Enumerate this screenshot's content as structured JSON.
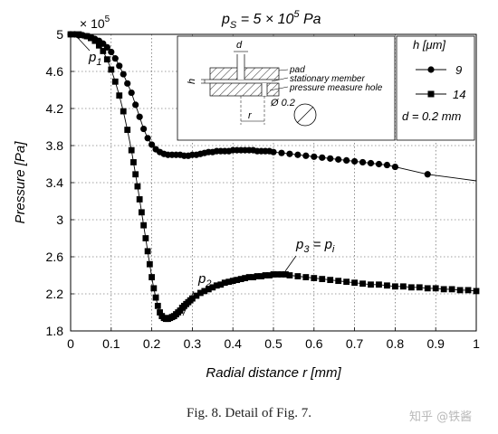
{
  "chart_data": {
    "type": "scatter",
    "title": "p",
    "title_sub": "S",
    "title_tail": " = 5 × 10",
    "title_exp": "5",
    "title_unit": " Pa",
    "xlabel": "Radial distance r [mm]",
    "ylabel": "Pressure [Pa]",
    "xlim": [
      0,
      1
    ],
    "ylim": [
      1.8,
      5.0
    ],
    "x_ticks": [
      "0",
      "0.1",
      "0.2",
      "0.3",
      "0.4",
      "0.5",
      "0.6",
      "0.7",
      "0.8",
      "0.9",
      "1"
    ],
    "y_ticks": [
      "1.8",
      "2.2",
      "2.6",
      "3",
      "3.4",
      "3.8",
      "4.2",
      "4.6",
      "5"
    ],
    "y_multiplier": "× 10",
    "y_multiplier_exp": "5",
    "grid": true,
    "legend": {
      "title": "h [μm]",
      "entries": [
        "9",
        "14"
      ],
      "note": "d = 0.2 mm",
      "position": "top-right"
    },
    "series": [
      {
        "name": "9",
        "marker": "circle",
        "x": [
          0,
          0.01,
          0.02,
          0.03,
          0.04,
          0.05,
          0.06,
          0.07,
          0.08,
          0.09,
          0.1,
          0.11,
          0.12,
          0.13,
          0.14,
          0.15,
          0.16,
          0.17,
          0.18,
          0.19,
          0.2,
          0.21,
          0.22,
          0.23,
          0.24,
          0.25,
          0.26,
          0.27,
          0.28,
          0.29,
          0.3,
          0.31,
          0.32,
          0.33,
          0.34,
          0.35,
          0.36,
          0.37,
          0.38,
          0.39,
          0.4,
          0.41,
          0.42,
          0.43,
          0.44,
          0.45,
          0.46,
          0.47,
          0.48,
          0.49,
          0.5,
          0.52,
          0.54,
          0.56,
          0.58,
          0.6,
          0.62,
          0.64,
          0.66,
          0.68,
          0.7,
          0.72,
          0.74,
          0.76,
          0.78,
          0.8,
          0.88
        ],
        "y": [
          5.0,
          5.0,
          4.99,
          4.99,
          4.98,
          4.97,
          4.95,
          4.93,
          4.9,
          4.86,
          4.81,
          4.74,
          4.66,
          4.57,
          4.47,
          4.37,
          4.24,
          4.11,
          3.98,
          3.88,
          3.81,
          3.76,
          3.73,
          3.71,
          3.7,
          3.7,
          3.7,
          3.7,
          3.69,
          3.69,
          3.7,
          3.7,
          3.71,
          3.72,
          3.73,
          3.73,
          3.74,
          3.74,
          3.74,
          3.74,
          3.75,
          3.75,
          3.75,
          3.75,
          3.75,
          3.75,
          3.74,
          3.74,
          3.74,
          3.74,
          3.73,
          3.72,
          3.71,
          3.7,
          3.69,
          3.68,
          3.67,
          3.66,
          3.65,
          3.64,
          3.63,
          3.62,
          3.61,
          3.6,
          3.59,
          3.57,
          3.49
        ]
      },
      {
        "name": "14",
        "marker": "square",
        "x": [
          0,
          0.02,
          0.04,
          0.05,
          0.06,
          0.07,
          0.08,
          0.09,
          0.1,
          0.11,
          0.12,
          0.13,
          0.14,
          0.15,
          0.155,
          0.16,
          0.165,
          0.17,
          0.175,
          0.18,
          0.185,
          0.19,
          0.195,
          0.2,
          0.205,
          0.21,
          0.215,
          0.22,
          0.225,
          0.23,
          0.235,
          0.24,
          0.245,
          0.25,
          0.255,
          0.26,
          0.265,
          0.27,
          0.275,
          0.28,
          0.285,
          0.29,
          0.295,
          0.3,
          0.31,
          0.32,
          0.33,
          0.34,
          0.35,
          0.36,
          0.37,
          0.38,
          0.39,
          0.4,
          0.41,
          0.42,
          0.43,
          0.44,
          0.45,
          0.46,
          0.47,
          0.48,
          0.49,
          0.5,
          0.51,
          0.52,
          0.53,
          0.54,
          0.56,
          0.58,
          0.6,
          0.62,
          0.64,
          0.66,
          0.68,
          0.7,
          0.72,
          0.74,
          0.76,
          0.78,
          0.8,
          0.82,
          0.84,
          0.86,
          0.88,
          0.9,
          0.92,
          0.94,
          0.96,
          0.98,
          1.0
        ],
        "y": [
          5.0,
          5.0,
          4.98,
          4.96,
          4.93,
          4.88,
          4.82,
          4.73,
          4.62,
          4.49,
          4.34,
          4.17,
          3.97,
          3.75,
          3.62,
          3.49,
          3.36,
          3.22,
          3.08,
          2.94,
          2.8,
          2.66,
          2.52,
          2.38,
          2.26,
          2.16,
          2.07,
          2.0,
          1.96,
          1.94,
          1.93,
          1.93,
          1.94,
          1.95,
          1.96,
          1.98,
          2.0,
          2.02,
          2.05,
          2.07,
          2.09,
          2.11,
          2.13,
          2.15,
          2.18,
          2.21,
          2.23,
          2.25,
          2.27,
          2.29,
          2.3,
          2.32,
          2.33,
          2.34,
          2.35,
          2.36,
          2.37,
          2.38,
          2.38,
          2.39,
          2.39,
          2.4,
          2.4,
          2.41,
          2.41,
          2.41,
          2.41,
          2.4,
          2.39,
          2.38,
          2.37,
          2.36,
          2.35,
          2.34,
          2.33,
          2.32,
          2.31,
          2.3,
          2.3,
          2.29,
          2.28,
          2.28,
          2.27,
          2.27,
          2.26,
          2.26,
          2.25,
          2.25,
          2.24,
          2.24,
          2.23
        ]
      }
    ],
    "annotations": [
      {
        "base": "p",
        "sub": "1",
        "tail": "",
        "tail_sub": ""
      },
      {
        "base": "p",
        "sub": "2",
        "tail": "",
        "tail_sub": ""
      },
      {
        "base": "p",
        "sub": "3",
        "tail": " = p",
        "tail_sub": "i"
      }
    ],
    "inset_labels": {
      "d": "d",
      "h": "h",
      "pad": "pad",
      "stationary_member": "stationary member",
      "pressure_hole": "pressure measure hole",
      "diameter": "Ø 0.2",
      "r": "r"
    }
  },
  "caption": "Fig. 8.  Detail of Fig. 7.",
  "watermark": "知乎 @铁酱"
}
